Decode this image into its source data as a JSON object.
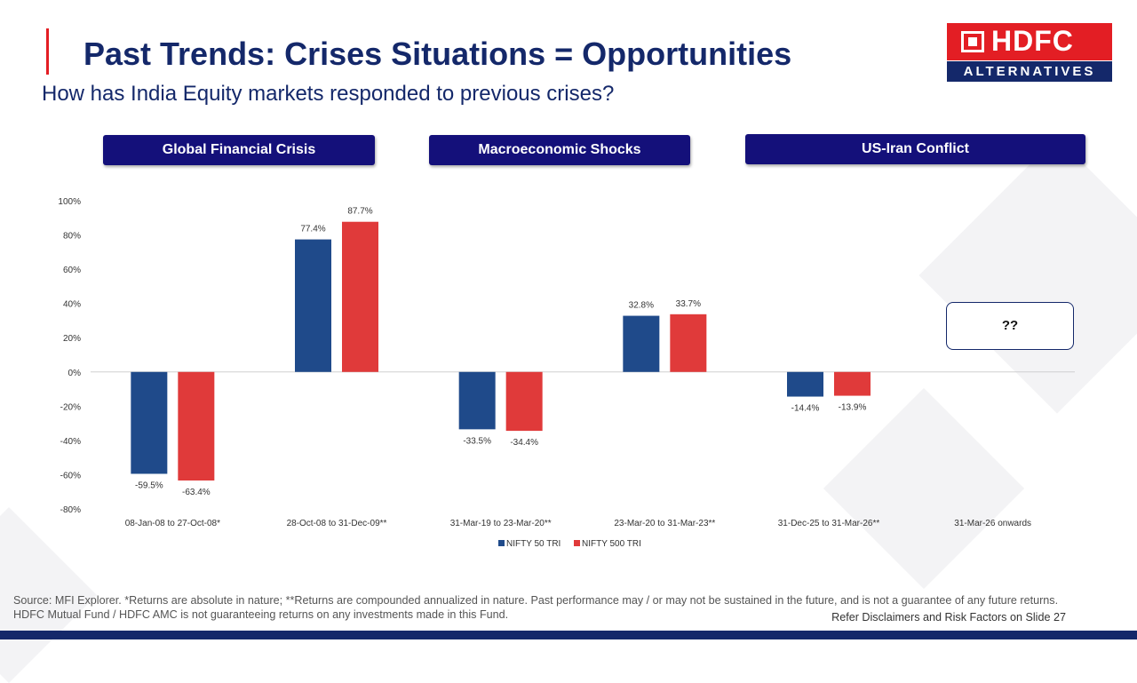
{
  "header": {
    "title": "Past Trends: Crises Situations = Opportunities",
    "subtitle": "How has India Equity markets responded to previous crises?"
  },
  "logo": {
    "name": "HDFC",
    "tagline": "ALTERNATIVES"
  },
  "groups": [
    {
      "label": "Global Financial Crisis"
    },
    {
      "label": "Macroeconomic Shocks"
    },
    {
      "label": "US-Iran Conflict"
    }
  ],
  "unknown_box": "??",
  "colors": {
    "nifty50": "#1f4a8a",
    "nifty500": "#e03a3a",
    "title": "#14286a",
    "group_label_bg": "#14107a",
    "accent": "#e31e24"
  },
  "chart_data": {
    "type": "bar",
    "categories": [
      "08-Jan-08 to 27-Oct-08*",
      "28-Oct-08 to 31-Dec-09**",
      "31-Mar-19 to 23-Mar-20**",
      "23-Mar-20 to 31-Mar-23**",
      "31-Dec-25 to 31-Mar-26**",
      "31-Mar-26 onwards"
    ],
    "series": [
      {
        "name": "NIFTY 50 TRI",
        "values": [
          -59.5,
          77.4,
          -33.5,
          32.8,
          -14.4,
          null
        ],
        "labels": [
          "-59.5%",
          "77.4%",
          "-33.5%",
          "32.8%",
          "-14.4%",
          ""
        ]
      },
      {
        "name": "NIFTY 500 TRI",
        "values": [
          -63.4,
          87.7,
          -34.4,
          33.7,
          -13.9,
          null
        ],
        "labels": [
          "-63.4%",
          "87.7%",
          "-34.4%",
          "33.7%",
          "-13.9%",
          ""
        ]
      }
    ],
    "ylim": [
      -80,
      100
    ],
    "yticks": [
      100,
      80,
      60,
      40,
      20,
      0,
      -20,
      -40,
      -60,
      -80
    ],
    "ytick_labels": [
      "100%",
      "80%",
      "60%",
      "40%",
      "20%",
      "0%",
      "-20%",
      "-40%",
      "-60%",
      "-80%"
    ],
    "legend_position": "bottom",
    "grid": false
  },
  "footer": {
    "source": "Source: MFI Explorer. *Returns are absolute in nature; **Returns are compounded annualized in nature. Past performance may / or may not be sustained in the future, and is not a guarantee of any future returns. HDFC Mutual Fund / HDFC AMC is not guaranteeing returns on any investments made in this Fund.",
    "refer": "Refer Disclaimers and Risk Factors on Slide 27"
  }
}
